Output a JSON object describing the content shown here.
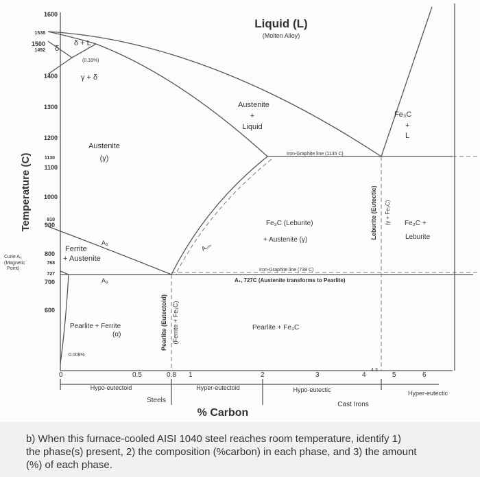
{
  "diagram": {
    "y_axis_label": "Temperature (C)",
    "x_axis_label": "% Carbon",
    "y_ticks": [
      "1600",
      "1538",
      "1500",
      "1492",
      "1400",
      "1300",
      "1200",
      "1130",
      "1100",
      "1000",
      "910",
      "900",
      "800",
      "768",
      "727",
      "700",
      "600"
    ],
    "x_ticks": [
      "0",
      "0.5",
      "0.8",
      "1",
      "2",
      "3",
      "4",
      "4.3",
      "5",
      "6"
    ],
    "curie": [
      "Curie A₂",
      "(Magnetic",
      "Point)"
    ],
    "regions": {
      "liquid": "Liquid (L)",
      "liquid_note": "(Molten Alloy)",
      "delta_l": "δ + L",
      "delta": "δ",
      "peritectic": "(0.16%)",
      "gamma_delta": "γ + δ",
      "austenite_liquid": [
        "Austenite",
        "+",
        "Liquid"
      ],
      "fe3c_l": [
        "Fe₃C",
        "+",
        "L"
      ],
      "austenite": [
        "Austenite",
        "(γ)"
      ],
      "ledeburite_austenite": [
        "Fe₃C  (Leburite)",
        "+ Austenite  (γ)"
      ],
      "fe3c_ledeburite": [
        "Fe₃C +",
        "Leburite"
      ],
      "ledeburite_box": [
        "Leburite (Eutectic)",
        "(γ + Fe₃C)"
      ],
      "ferrite_austenite": [
        "Ferrite",
        "+ Austenite"
      ],
      "pearlite_ferrite": [
        "Pearlite  +  Ferrite",
        "(α)"
      ],
      "pearlite_fe3c": "Pearlite + Fe₃C",
      "pearlite_box": [
        "Pearlite (Eutectoid)",
        "(Ferrite + Fe₃C)"
      ],
      "ferrite_solubility": "0.008%"
    },
    "lines": {
      "a3": "A₃",
      "a3_lower": "A₃",
      "acm": "A꜀ₘ",
      "iron_graphite_high": "Iron-Graphite line (1135 C)",
      "iron_graphite_low": "Iron-Graphite line (738 C)",
      "a1": "A₁, 727C (Austenite transforms to Pearlite)"
    },
    "ranges": {
      "hypo_eutectoid": "Hypo-eutectoid",
      "hyper_eutectoid": "Hyper-eutectoid",
      "hypo_eutectic": "Hypo-eutectic",
      "hyper_eutectic": "Hyper-eutectic",
      "steels": "Steels",
      "cast_irons": "Cast Irons"
    }
  },
  "question": [
    "b) When this furnace-cooled AISI 1040 steel reaches room temperature, identify 1)",
    "the phase(s) present, 2) the composition (%carbon) in each phase, and 3) the amount",
    "(%) of each phase."
  ]
}
